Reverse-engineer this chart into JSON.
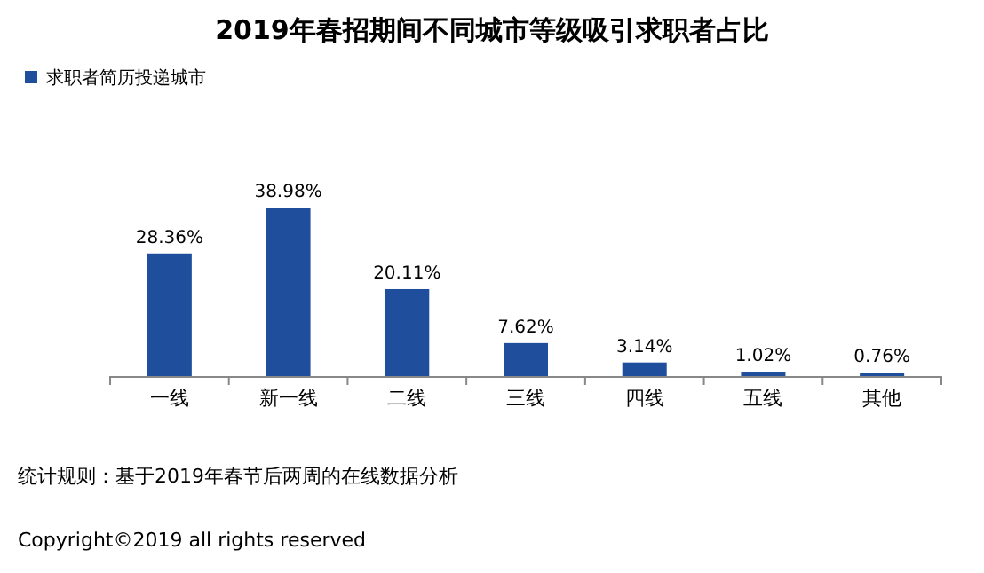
{
  "chart_data": {
    "type": "bar",
    "title": "2019年春招期间不同城市等级吸引求职者占比",
    "categories": [
      "一线",
      "新一线",
      "二线",
      "三线",
      "四线",
      "五线",
      "其他"
    ],
    "series": [
      {
        "name": "求职者简历投递城市",
        "color": "#1f4e9c",
        "values": [
          28.36,
          38.98,
          20.11,
          7.62,
          3.14,
          1.02,
          0.76
        ],
        "value_labels": [
          "28.36%",
          "38.98%",
          "20.11%",
          "7.62%",
          "3.14%",
          "1.02%",
          "0.76%"
        ]
      }
    ],
    "legend": "top left",
    "annotations": [
      "统计规则：基于2019年春节后两周的在线数据分析",
      "Copyright©2019 all rights reserved"
    ]
  }
}
